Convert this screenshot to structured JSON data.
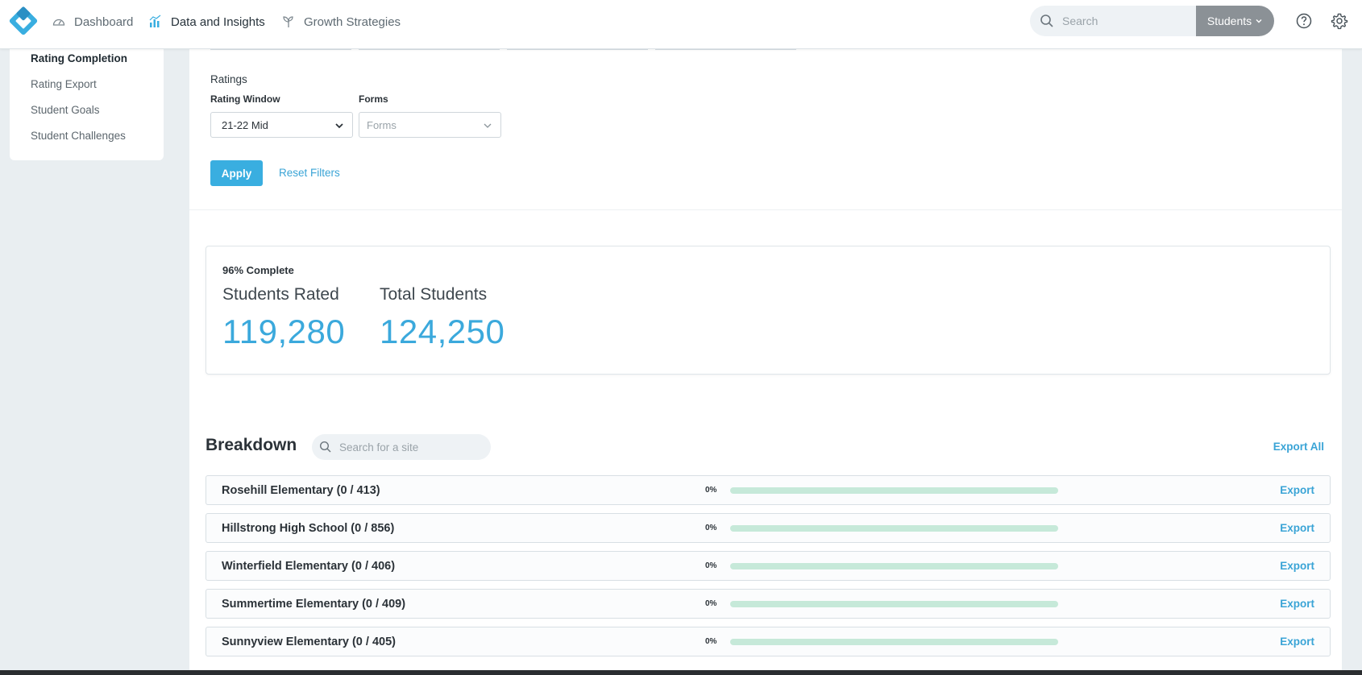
{
  "topbar": {
    "nav": [
      {
        "label": "Dashboard",
        "icon": "gauge-icon"
      },
      {
        "label": "Data and Insights",
        "icon": "bar-chart-icon"
      },
      {
        "label": "Growth Strategies",
        "icon": "sprout-icon"
      }
    ],
    "search_placeholder": "Search",
    "scope_label": "Students",
    "accent_color": "#39aee0"
  },
  "sidebar": {
    "items": [
      {
        "label": "Rating Completion",
        "active": true
      },
      {
        "label": "Rating Export"
      },
      {
        "label": "Student Goals"
      },
      {
        "label": "Student Challenges"
      }
    ]
  },
  "filters": {
    "section_title": "Ratings",
    "rating_window": {
      "label": "Rating Window",
      "value": "21-22 Mid"
    },
    "forms": {
      "label": "Forms",
      "placeholder": "Forms"
    },
    "apply_label": "Apply",
    "reset_label": "Reset Filters"
  },
  "summary": {
    "percent_complete": "96% Complete",
    "students_rated_label": "Students Rated",
    "students_rated_value": "119,280",
    "total_students_label": "Total Students",
    "total_students_value": "124,250"
  },
  "breakdown": {
    "title": "Breakdown",
    "search_placeholder": "Search for a site",
    "export_all_label": "Export All",
    "export_label": "Export",
    "rows": [
      {
        "name": "Rosehill Elementary (0 / 413)",
        "percent": "0%",
        "progress": 0
      },
      {
        "name": "Hillstrong High School (0 / 856)",
        "percent": "0%",
        "progress": 0
      },
      {
        "name": "Winterfield Elementary (0 / 406)",
        "percent": "0%",
        "progress": 0
      },
      {
        "name": "Summertime Elementary (0 / 409)",
        "percent": "0%",
        "progress": 0
      },
      {
        "name": "Sunnyview Elementary (0 / 405)",
        "percent": "0%",
        "progress": 0
      }
    ]
  }
}
